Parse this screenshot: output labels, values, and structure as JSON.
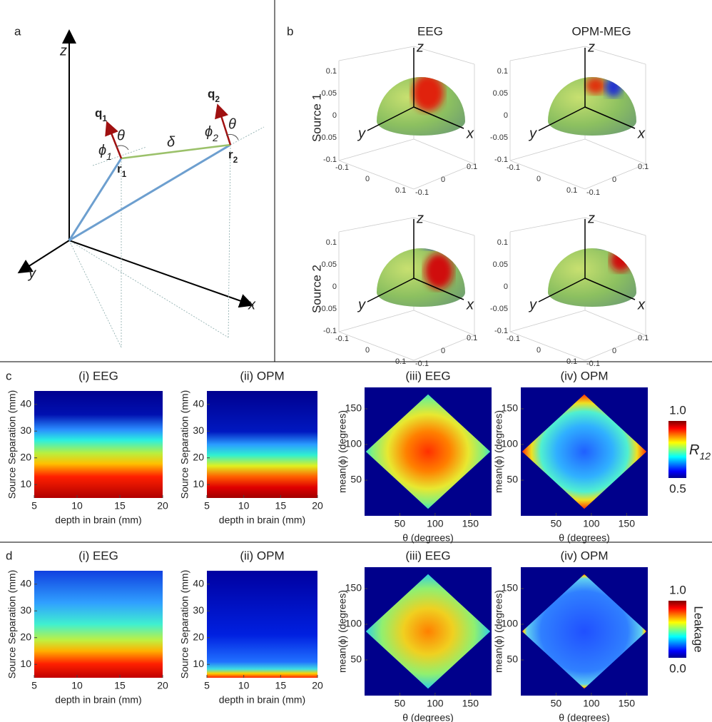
{
  "panel_a": {
    "label": "a",
    "axis_z": "z",
    "axis_y": "y",
    "axis_x": "x",
    "q1": [
      "q",
      "1"
    ],
    "q2": [
      "q",
      "2"
    ],
    "r1": [
      "r",
      "1"
    ],
    "r2": [
      "r",
      "2"
    ],
    "theta_1": "θ",
    "theta_2": "θ",
    "phi1": [
      "ϕ",
      "1"
    ],
    "phi2": [
      "ϕ",
      "2"
    ],
    "delta": "δ"
  },
  "panel_b": {
    "label": "b",
    "columns": [
      "EEG",
      "OPM-MEG"
    ],
    "rows": [
      "Source 1",
      "Source 2"
    ],
    "axis_labels": {
      "z": "z",
      "y": "y",
      "x": "x"
    },
    "z_ticks": [
      "0.1",
      "0.05",
      "0",
      "-0.05",
      "-0.1"
    ],
    "y_ticks": [
      "-0.1",
      "0",
      "0.1"
    ],
    "x_ticks": [
      "-0.1",
      "0",
      "0.1"
    ]
  },
  "panel_c": {
    "label": "c",
    "plots": [
      {
        "title": "(i) EEG",
        "xlabel": "depth in brain (mm)",
        "ylabel": "Source Separation (mm)",
        "xticks": [
          "5",
          "10",
          "15",
          "20"
        ],
        "yticks": [
          "10",
          "20",
          "30",
          "40"
        ]
      },
      {
        "title": "(ii) OPM",
        "xlabel": "depth in brain (mm)",
        "ylabel": "Source Separation (mm)",
        "xticks": [
          "5",
          "10",
          "15",
          "20"
        ],
        "yticks": [
          "10",
          "20",
          "30",
          "40"
        ]
      },
      {
        "title": "(iii) EEG",
        "xlabel": "θ (degrees)",
        "ylabel": "mean(ϕ) (degrees)",
        "xticks": [
          "50",
          "100",
          "150"
        ],
        "yticks": [
          "50",
          "100",
          "150"
        ]
      },
      {
        "title": "(iv) OPM",
        "xlabel": "θ (degrees)",
        "ylabel": "mean(ϕ) (degrees)",
        "xticks": [
          "50",
          "100",
          "150"
        ],
        "yticks": [
          "50",
          "100",
          "150"
        ]
      }
    ],
    "colorbar": {
      "max": "1.0",
      "min": "0.5",
      "label": [
        "R",
        "12"
      ]
    }
  },
  "panel_d": {
    "label": "d",
    "plots": [
      {
        "title": "(i) EEG",
        "xlabel": "depth in brain (mm)",
        "ylabel": "Source Separation (mm)",
        "xticks": [
          "5",
          "10",
          "15",
          "20"
        ],
        "yticks": [
          "10",
          "20",
          "30",
          "40"
        ]
      },
      {
        "title": "(ii) OPM",
        "xlabel": "depth in brain (mm)",
        "ylabel": "Source Separation (mm)",
        "xticks": [
          "5",
          "10",
          "15",
          "20"
        ],
        "yticks": [
          "10",
          "20",
          "30",
          "40"
        ]
      },
      {
        "title": "(iii) EEG",
        "xlabel": "θ (degrees)",
        "ylabel": "mean(ϕ) (degrees)",
        "xticks": [
          "50",
          "100",
          "150"
        ],
        "yticks": [
          "50",
          "100",
          "150"
        ]
      },
      {
        "title": "(iv) OPM",
        "xlabel": "θ (degrees)",
        "ylabel": "mean(ϕ) (degrees)",
        "xticks": [
          "50",
          "100",
          "150"
        ],
        "yticks": [
          "50",
          "100",
          "150"
        ]
      }
    ],
    "colorbar": {
      "max": "1.0",
      "min": "0.0",
      "label": "Leakage"
    }
  }
}
